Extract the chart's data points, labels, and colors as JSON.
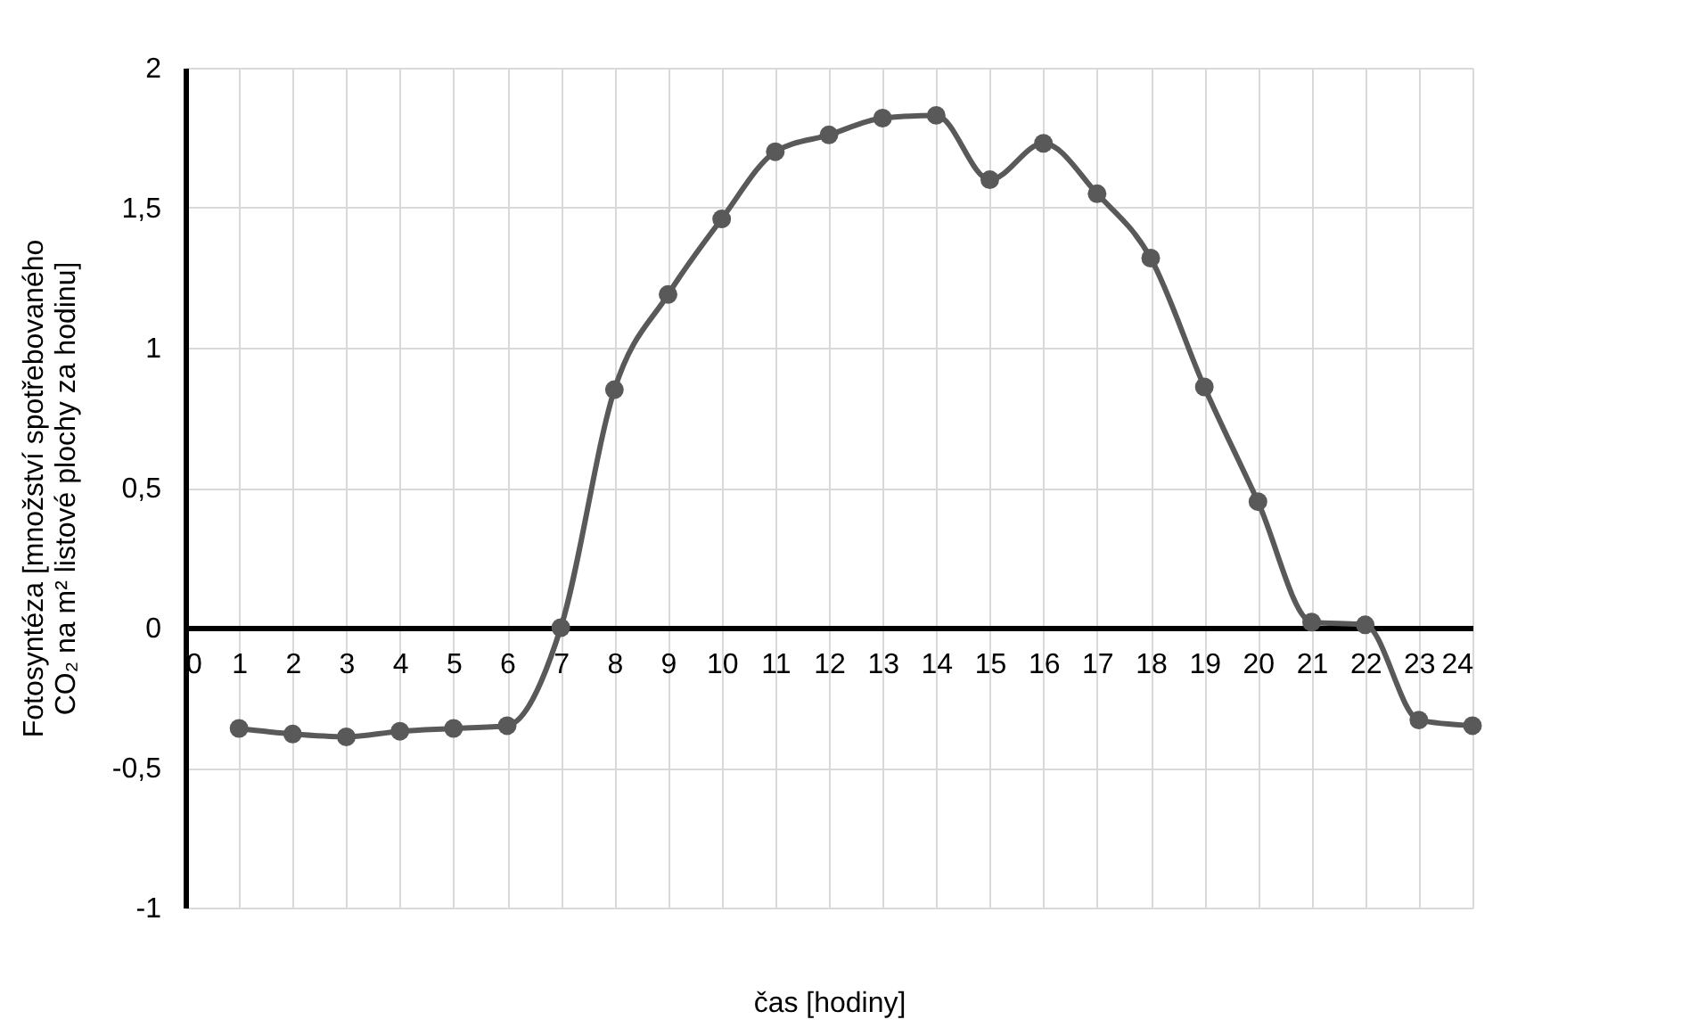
{
  "chart_data": {
    "type": "line",
    "xlabel": "čas [hodiny]",
    "ylabel": "Fotosyntéza [množství spotřebovaného\nCO₂ na m² listové plochy za hodinu]",
    "x": [
      1,
      2,
      3,
      4,
      5,
      6,
      7,
      8,
      9,
      10,
      11,
      12,
      13,
      14,
      15,
      16,
      17,
      18,
      19,
      20,
      21,
      22,
      23,
      24
    ],
    "series": [
      {
        "color": "#595959",
        "values": [
          -0.36,
          -0.38,
          -0.39,
          -0.37,
          -0.36,
          -0.35,
          0,
          0.85,
          1.19,
          1.46,
          1.7,
          1.76,
          1.82,
          1.83,
          1.6,
          1.73,
          1.55,
          1.32,
          0.86,
          0.45,
          0.02,
          0.01,
          -0.33,
          -0.35
        ]
      }
    ],
    "xlim": [
      0,
      24
    ],
    "xticks": [
      0,
      1,
      2,
      3,
      4,
      5,
      6,
      7,
      8,
      9,
      10,
      11,
      12,
      13,
      14,
      15,
      16,
      17,
      18,
      19,
      20,
      21,
      22,
      23,
      24
    ],
    "ylim": [
      -1,
      2
    ],
    "yticks": [
      2,
      {
        "value": 1.5,
        "label": "1,5"
      },
      1,
      {
        "value": 0.5,
        "label": "0,5"
      },
      0,
      {
        "value": -0.5,
        "label": "-0,5"
      },
      -1
    ],
    "grid": true,
    "marker": "circle",
    "line_style": "solid"
  }
}
